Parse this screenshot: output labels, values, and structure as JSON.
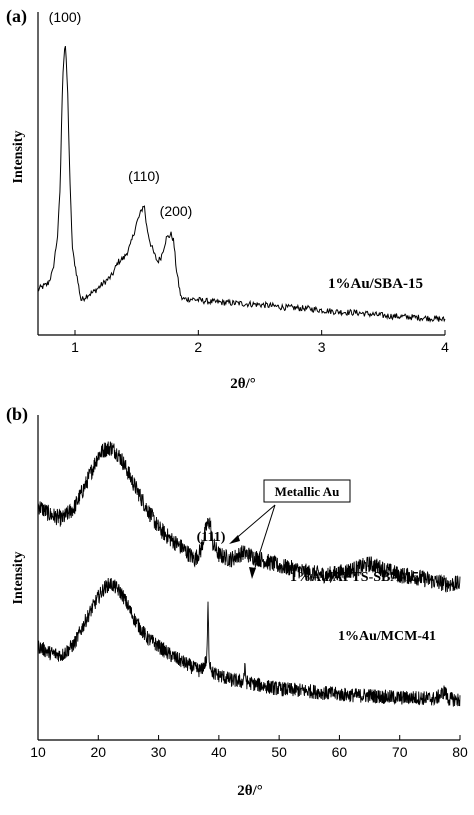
{
  "chart_data": [
    {
      "panel_label": "(a)",
      "type": "line",
      "xlabel": "2θ/°",
      "ylabel": "Intensity",
      "xlim": [
        0.7,
        4.0
      ],
      "xticks": [
        1,
        2,
        3,
        4
      ],
      "y_scale": "arbitrary units, no tick labels",
      "series": [
        {
          "name": "1%Au/SBA-15",
          "x": [
            0.7,
            0.78,
            0.82,
            0.86,
            0.88,
            0.9,
            0.92,
            0.94,
            0.96,
            0.98,
            1.0,
            1.03,
            1.05,
            1.1,
            1.15,
            1.2,
            1.25,
            1.3,
            1.35,
            1.4,
            1.45,
            1.5,
            1.53,
            1.56,
            1.58,
            1.61,
            1.64,
            1.67,
            1.7,
            1.74,
            1.78,
            1.8,
            1.82,
            1.84,
            1.86,
            1.88,
            1.95,
            2.1,
            2.3,
            2.5,
            2.7,
            2.9,
            3.1,
            3.3,
            3.5,
            3.7,
            3.9,
            4.0
          ],
          "y": [
            20,
            24,
            33,
            60,
            95,
            175,
            200,
            165,
            95,
            48,
            38,
            22,
            12,
            16,
            18,
            22,
            26,
            30,
            40,
            43,
            52,
            68,
            75,
            82,
            66,
            54,
            46,
            40,
            44,
            57,
            60,
            55,
            36,
            24,
            14,
            13,
            13,
            11,
            10,
            9,
            7,
            6,
            4,
            3,
            1,
            0,
            -1,
            -2
          ]
        }
      ],
      "annotations": [
        "(100)",
        "(110)",
        "(200)"
      ],
      "series_label": "1%Au/SBA-15"
    },
    {
      "panel_label": "(b)",
      "type": "line",
      "xlabel": "2θ/°",
      "ylabel": "Intensity",
      "xlim": [
        10,
        80
      ],
      "xticks": [
        10,
        20,
        30,
        40,
        50,
        60,
        70,
        80
      ],
      "y_scale": "arbitrary units, no tick labels",
      "series": [
        {
          "name": "1%Au/APTS-SBA-15",
          "x": [
            10,
            12,
            14,
            16,
            18,
            20,
            21,
            22,
            23,
            24,
            26,
            28,
            30,
            32,
            34,
            36,
            37,
            38,
            38.5,
            39,
            40,
            42,
            44,
            46,
            48,
            50,
            52,
            55,
            58,
            60,
            63,
            65,
            67,
            70,
            73,
            76,
            78,
            80
          ],
          "y": [
            120,
            112,
            108,
            118,
            140,
            165,
            170,
            172,
            168,
            160,
            138,
            118,
            100,
            90,
            82,
            72,
            80,
            102,
            106,
            86,
            76,
            72,
            78,
            74,
            70,
            66,
            64,
            60,
            58,
            60,
            64,
            68,
            64,
            58,
            56,
            52,
            50,
            50
          ]
        },
        {
          "name": "1%Au/MCM-41",
          "x": [
            10,
            12,
            14,
            16,
            18,
            20,
            21,
            22,
            23,
            24,
            26,
            28,
            30,
            32,
            34,
            36,
            37,
            38,
            38.2,
            38.4,
            39,
            40,
            42,
            44,
            44.3,
            44.6,
            46,
            48,
            50,
            52,
            55,
            58,
            60,
            63,
            65,
            67,
            70,
            73,
            76,
            77.5,
            78,
            80
          ],
          "y": [
            48,
            42,
            40,
            50,
            72,
            92,
            100,
            104,
            100,
            94,
            72,
            56,
            48,
            40,
            34,
            28,
            26,
            36,
            84,
            36,
            24,
            22,
            18,
            16,
            28,
            16,
            14,
            12,
            10,
            9,
            8,
            6,
            5,
            4,
            4,
            3,
            2,
            2,
            1,
            8,
            1,
            0
          ]
        }
      ],
      "annotations": [
        "(111)",
        "Metallic Au"
      ],
      "series_labels": [
        "1%Au/APTS-SBA-15",
        "1%Au/MCM-41"
      ]
    }
  ]
}
